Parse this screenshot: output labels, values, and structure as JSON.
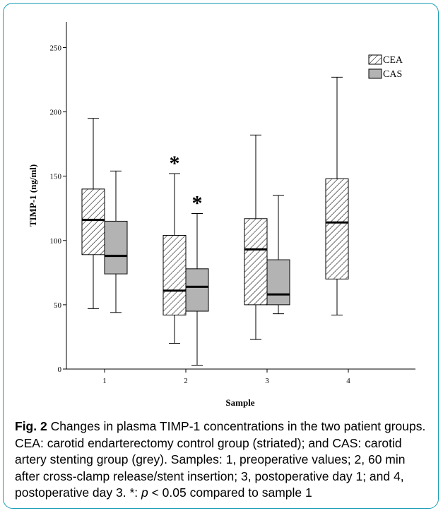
{
  "chart_data": {
    "type": "box",
    "title": "",
    "xlabel": "Sample",
    "ylabel": "TIMP-1 (ng/ml)",
    "ylim": [
      0,
      270
    ],
    "y_ticks": [
      0,
      50,
      100,
      150,
      200,
      250
    ],
    "categories": [
      "1",
      "2",
      "3",
      "4"
    ],
    "grid": false,
    "legend_position": "top-right",
    "series": [
      {
        "name": "CEA",
        "pattern": "striated",
        "boxes": [
          {
            "category": "1",
            "min": 47,
            "q1": 89,
            "median": 116,
            "q3": 140,
            "max": 195
          },
          {
            "category": "2",
            "min": 20,
            "q1": 42,
            "median": 61,
            "q3": 104,
            "max": 152,
            "significant": true
          },
          {
            "category": "3",
            "min": 23,
            "q1": 50,
            "median": 93,
            "q3": 117,
            "max": 182
          },
          {
            "category": "4",
            "min": 42,
            "q1": 70,
            "median": 114,
            "q3": 148,
            "max": 227
          }
        ]
      },
      {
        "name": "CAS",
        "color": "#b3b3b3",
        "boxes": [
          {
            "category": "1",
            "min": 44,
            "q1": 74,
            "median": 88,
            "q3": 115,
            "max": 154
          },
          {
            "category": "2",
            "min": 3,
            "q1": 45,
            "median": 64,
            "q3": 78,
            "max": 121,
            "significant": true
          },
          {
            "category": "3",
            "min": 43,
            "q1": 50,
            "median": 58,
            "q3": 85,
            "max": 135
          }
        ]
      }
    ],
    "annotation_symbol": "*"
  },
  "caption": {
    "label": "Fig. 2",
    "text_before": " Changes in plasma TIMP-1 concentrations in the two patient groups. CEA: carotid endarterectomy control group (striated); and CAS: carotid artery stenting group (grey). Samples: 1, preoperative values; 2, 60 min after cross-clamp release/stent insertion; 3, postoperative day 1; and 4, postoperative day 3. *: ",
    "p_symbol": "p",
    "text_after": " < 0.05 compared to sample 1"
  }
}
